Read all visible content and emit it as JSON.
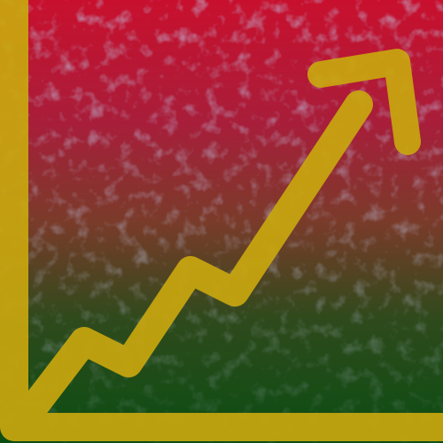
{
  "image": {
    "icon": "trending-up-arrow-icon",
    "colors": {
      "top": "#c8102e",
      "middle": "#7a3b2a",
      "bottom": "#0a4d12",
      "accent": "#c9a70f",
      "speckle": "#7f8fc4"
    }
  }
}
